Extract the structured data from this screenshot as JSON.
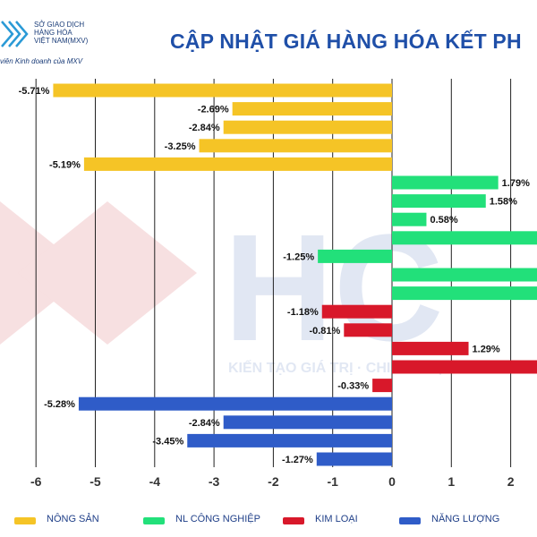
{
  "header": {
    "logo_lines": [
      "SỞ GIAO DỊCH",
      "HÀNG HÓA",
      "VIỆT NAM(MXV)"
    ],
    "logo_subline": "viên Kinh doanh của MXV",
    "title": "CẬP NHẬT GIÁ HÀNG HÓA KẾT PH"
  },
  "watermark": {
    "text": "KIẾN TẠO GIÁ TRỊ · CHINH PHỤC TƯƠNG LAI",
    "letters": "HC"
  },
  "colors": {
    "nong_san": "#f5c426",
    "nl_cong_nghiep": "#22e07a",
    "kim_loai": "#d8182a",
    "nang_luong": "#2f5cc8",
    "title": "#1f4fa8"
  },
  "chart_data": {
    "type": "bar",
    "orientation": "horizontal",
    "xlim": [
      -6.4,
      2.5
    ],
    "x_ticks": [
      -6,
      -5,
      -4,
      -3,
      -2,
      -1,
      0,
      1,
      2
    ],
    "grid": true,
    "legend_position": "bottom",
    "series": [
      {
        "name": "NÔNG SẢN",
        "color": "#f5c426",
        "values": [
          -5.71,
          -2.69,
          -2.84,
          -3.25,
          -5.19
        ],
        "labels": [
          "-5.71%",
          "-2.69%",
          "-2.84%",
          "-3.25%",
          "-5.19%"
        ]
      },
      {
        "name": "NL CÔNG NGHIỆP",
        "color": "#22e07a",
        "values": [
          1.79,
          1.58,
          0.58,
          2.5,
          -1.25,
          2.5,
          2.5
        ],
        "labels": [
          "1.79%",
          "1.58%",
          "0.58%",
          "",
          "-1.25%",
          "",
          ""
        ]
      },
      {
        "name": "KIM LOẠI",
        "color": "#d8182a",
        "values": [
          -1.18,
          -0.81,
          1.29,
          2.5,
          -0.33
        ],
        "labels": [
          "-1.18%",
          "-0.81%",
          "1.29%",
          "",
          "-0.33%"
        ]
      },
      {
        "name": "NĂNG LƯỢNG",
        "color": "#2f5cc8",
        "values": [
          -5.28,
          -2.84,
          -3.45,
          -1.27
        ],
        "labels": [
          "-5.28%",
          "-2.84%",
          "-3.45%",
          "-1.27%"
        ]
      }
    ]
  }
}
